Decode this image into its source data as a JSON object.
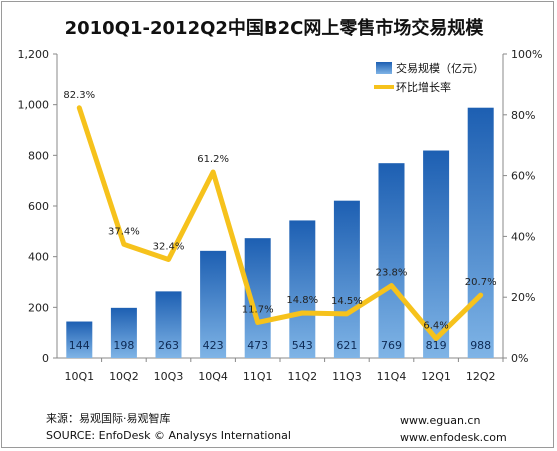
{
  "chart_data": {
    "type": "bar",
    "title": "2010Q1-2012Q2中国B2C网上零售市场交易规模",
    "categories": [
      "10Q1",
      "10Q2",
      "10Q3",
      "10Q4",
      "11Q1",
      "11Q2",
      "11Q3",
      "11Q4",
      "12Q1",
      "12Q2"
    ],
    "series": [
      {
        "name": "交易规模（亿元）",
        "type": "bar",
        "axis": "left",
        "values": [
          144,
          198,
          263,
          423,
          473,
          543,
          621,
          769,
          819,
          988
        ],
        "labels": [
          "144",
          "198",
          "263",
          "423",
          "473",
          "543",
          "621",
          "769",
          "819",
          "988"
        ]
      },
      {
        "name": "环比增长率",
        "type": "line",
        "axis": "right",
        "values": [
          82.3,
          37.4,
          32.4,
          61.2,
          11.7,
          14.8,
          14.5,
          23.8,
          6.4,
          20.7
        ],
        "labels": [
          "82.3%",
          "37.4%",
          "32.4%",
          "61.2%",
          "11.7%",
          "14.8%",
          "14.5%",
          "23.8%",
          "6.4%",
          "20.7%"
        ]
      }
    ],
    "y_left": {
      "min": 0,
      "max": 1200,
      "ticks": [
        "0",
        "200",
        "400",
        "600",
        "800",
        "1,000",
        "1,200"
      ]
    },
    "y_right": {
      "min": 0,
      "max": 100,
      "ticks": [
        "0%",
        "20%",
        "40%",
        "60%",
        "80%",
        "100%"
      ]
    },
    "grid": false,
    "legend": "top-right",
    "colors": {
      "bar_light": "#7fb4e6",
      "bar_dark": "#1d5fb2",
      "line": "#f6c21c"
    }
  },
  "footer": {
    "source_cn": "来源：易观国际·易观智库",
    "source_en": "SOURCE: EnfoDesk © Analysys International",
    "url1": "www.eguan.cn",
    "url2": "www.enfodesk.com"
  }
}
